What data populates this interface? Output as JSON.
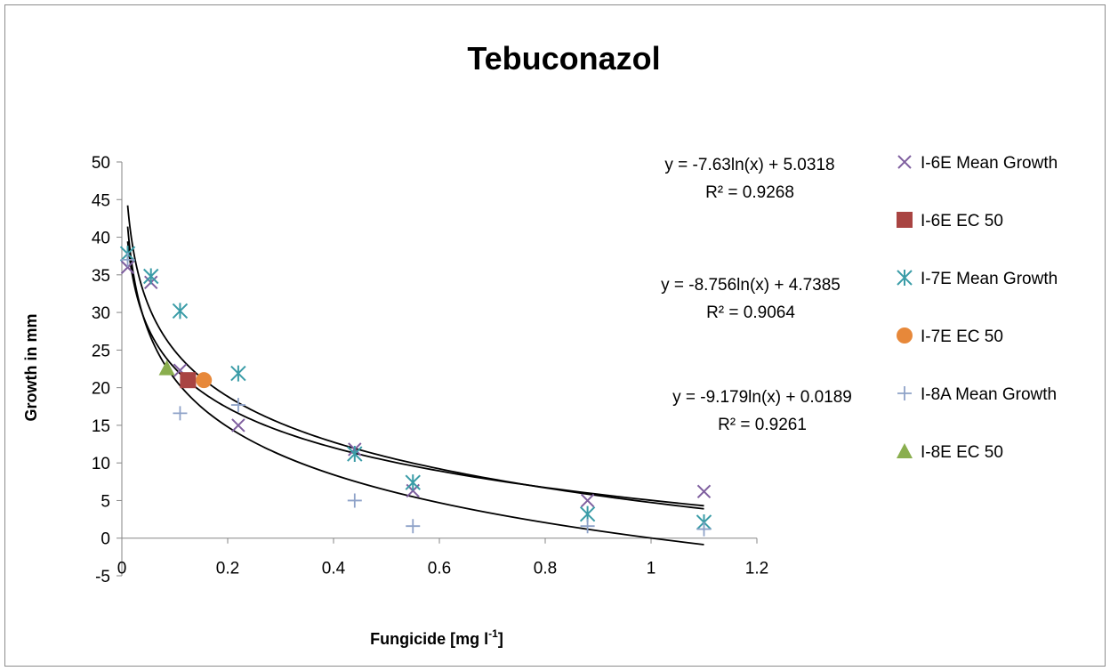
{
  "chart_data": {
    "type": "scatter",
    "title": "Tebuconazol",
    "xlabel": "Fungicide [mg l",
    "xlabel_sup": "-1",
    "xlabel_end": "]",
    "ylabel": "Growth in mm",
    "xlim": [
      0,
      1.2
    ],
    "ylim": [
      -5,
      50
    ],
    "x_ticks": [
      0,
      0.2,
      0.4,
      0.6,
      0.8,
      1,
      1.2
    ],
    "x_tick_labels": [
      "0",
      "0.2",
      "0.4",
      "0.6",
      "0.8",
      "1",
      "1.2"
    ],
    "y_ticks": [
      -5,
      0,
      5,
      10,
      15,
      20,
      25,
      30,
      35,
      40,
      45,
      50
    ],
    "y_tick_labels": [
      "-5",
      "0",
      "5",
      "10",
      "15",
      "20",
      "25",
      "30",
      "35",
      "40",
      "45",
      "50"
    ],
    "grid": false,
    "legend_position": "right",
    "series": [
      {
        "name": "I-6E Mean Growth",
        "marker": "x",
        "color": "#7f5f9f",
        "points": [
          [
            0.011,
            36.0
          ],
          [
            0.055,
            34.0
          ],
          [
            0.11,
            22.3
          ],
          [
            0.22,
            15.0
          ],
          [
            0.44,
            11.8
          ],
          [
            0.55,
            6.3
          ],
          [
            0.88,
            5.0
          ],
          [
            1.1,
            6.2
          ]
        ]
      },
      {
        "name": "I-6E EC 50",
        "marker": "square",
        "color": "#a94442",
        "points": [
          [
            0.125,
            21.0
          ]
        ]
      },
      {
        "name": "I-7E Mean Growth",
        "marker": "asterisk",
        "color": "#3a9ca7",
        "points": [
          [
            0.011,
            37.8
          ],
          [
            0.055,
            34.8
          ],
          [
            0.11,
            30.2
          ],
          [
            0.22,
            21.9
          ],
          [
            0.44,
            11.2
          ],
          [
            0.55,
            7.4
          ],
          [
            0.88,
            3.2
          ],
          [
            1.1,
            2.1
          ]
        ]
      },
      {
        "name": "I-7E EC 50",
        "marker": "circle",
        "color": "#e7883a",
        "points": [
          [
            0.155,
            21.0
          ]
        ]
      },
      {
        "name": "I-8A Mean Growth",
        "marker": "plus",
        "color": "#8ea2c8",
        "points": [
          [
            0.011,
            37.0
          ],
          [
            0.11,
            16.6
          ],
          [
            0.22,
            17.7
          ],
          [
            0.44,
            5.0
          ],
          [
            0.55,
            1.6
          ],
          [
            0.88,
            1.6
          ],
          [
            1.1,
            1.2
          ]
        ]
      },
      {
        "name": "I-8E EC 50",
        "marker": "triangle",
        "color": "#8aae4e",
        "points": [
          [
            0.085,
            22.6
          ]
        ]
      }
    ],
    "trendlines": [
      {
        "type": "log",
        "a": -7.63,
        "b": 5.0318,
        "equation": "y = -7.63ln(x) + 5.0318",
        "r2": "R² = 0.9268"
      },
      {
        "type": "log",
        "a": -8.756,
        "b": 4.7385,
        "equation": "y = -8.756ln(x) + 4.7385",
        "r2": "R² = 0.9064"
      },
      {
        "type": "log",
        "a": -9.179,
        "b": 0.0189,
        "equation": "y = -9.179ln(x) + 0.0189",
        "r2": "R² = 0.9261"
      }
    ]
  }
}
